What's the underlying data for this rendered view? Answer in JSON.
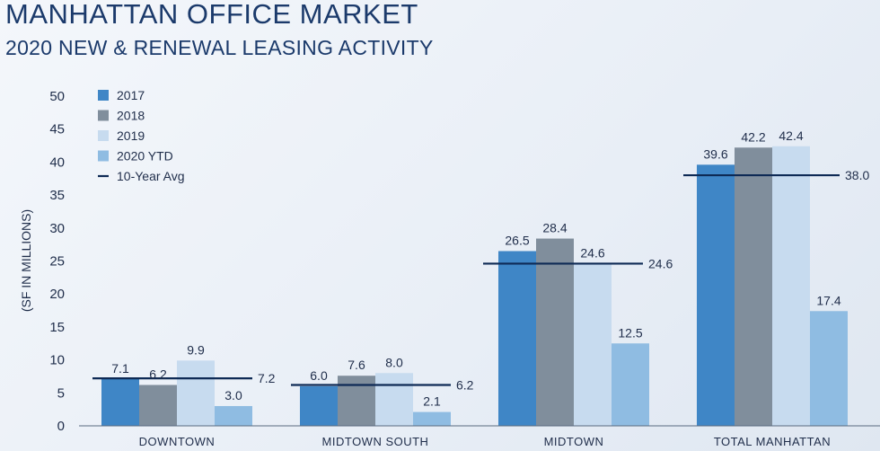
{
  "header": {
    "title": "MANHATTAN OFFICE MARKET",
    "subtitle": "2020 NEW & RENEWAL LEASING ACTIVITY"
  },
  "chart_data": {
    "type": "bar",
    "title": "MANHATTAN OFFICE MARKET",
    "subtitle": "2020 NEW & RENEWAL LEASING ACTIVITY",
    "xlabel": "",
    "ylabel": "(SF IN MILLIONS)",
    "ylim": [
      0,
      50
    ],
    "yticks": [
      0,
      5,
      10,
      15,
      20,
      25,
      30,
      35,
      40,
      45,
      50
    ],
    "grid": false,
    "legend_position": "top-left",
    "categories": [
      "DOWNTOWN",
      "MIDTOWN SOUTH",
      "MIDTOWN",
      "TOTAL MANHATTAN"
    ],
    "series": [
      {
        "name": "2017",
        "color": "#3f86c6",
        "values": [
          7.1,
          6.0,
          26.5,
          39.6
        ],
        "labels": [
          "7.1",
          "6.0",
          "26.5",
          "39.6"
        ]
      },
      {
        "name": "2018",
        "color": "#808e9c",
        "values": [
          6.2,
          7.6,
          28.4,
          42.2
        ],
        "labels": [
          "6.2",
          "7.6",
          "28.4",
          "42.2"
        ]
      },
      {
        "name": "2019",
        "color": "#c7dbef",
        "values": [
          9.9,
          8.0,
          24.6,
          42.4
        ],
        "labels": [
          "9.9",
          "8.0",
          "24.6",
          "42.4"
        ]
      },
      {
        "name": "2020 YTD",
        "color": "#8fbce2",
        "values": [
          3.0,
          2.1,
          12.5,
          17.4
        ],
        "labels": [
          "3.0",
          "2.1",
          "12.5",
          "17.4"
        ]
      }
    ],
    "reference": {
      "name": "10-Year Avg",
      "color": "#0e2a55",
      "values": [
        7.2,
        6.2,
        24.6,
        38.0
      ],
      "labels": [
        "7.2",
        "6.2",
        "24.6",
        "38.0"
      ]
    }
  }
}
